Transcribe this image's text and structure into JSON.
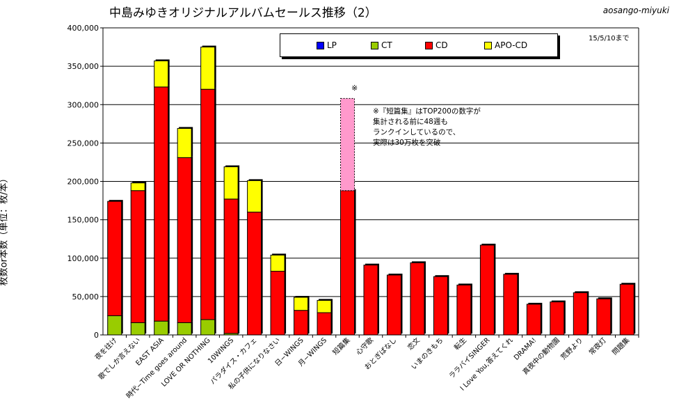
{
  "header": {
    "title": "中島みゆきオリジナルアルバムセールス推移（2）",
    "author": "aosango-miyuki",
    "as_of": "15/5/10まで"
  },
  "annotation": {
    "mark": "※",
    "lines": [
      "※『短篇集』はTOP200の数字が",
      "集計される前に48週も",
      "ランクインしているので、",
      "実際は30万枚を突破"
    ]
  },
  "colors": {
    "LP": "#0000ff",
    "CT": "#99cc00",
    "CD": "#ff0000",
    "APO-CD": "#ffff00",
    "estimate": "#ff99cc"
  },
  "chart_data": {
    "type": "bar",
    "stacked": true,
    "ylabel": "枚数or本数（単位：枚/本）",
    "ylim": [
      0,
      400000
    ],
    "yticks": [
      "0",
      "50,000",
      "100,000",
      "150,000",
      "200,000",
      "250,000",
      "300,000",
      "350,000",
      "400,000"
    ],
    "grid": true,
    "legend_position": "top-center",
    "categories": [
      "夜を往け",
      "歌でしか言えない",
      "EAST ASIA",
      "時代−Time goes around",
      "LOVE OR NOTHING",
      "10WINGS",
      "パラダイス・カフェ",
      "私の子供になりなさい",
      "日−WINGS",
      "月−WINGS",
      "短篇集",
      "心守歌",
      "おとぎばなし",
      "恋文",
      "いまのきもち",
      "転生",
      "ララバイSINGER",
      "I Love You,答えてくれ",
      "DRAMA!",
      "真夜中の動物園",
      "荒野より",
      "常夜灯",
      "問題集"
    ],
    "series": [
      {
        "name": "LP",
        "values": [
          0,
          0,
          0,
          0,
          0,
          0,
          0,
          0,
          0,
          0,
          0,
          0,
          0,
          0,
          0,
          0,
          0,
          0,
          0,
          0,
          0,
          0,
          0
        ]
      },
      {
        "name": "CT",
        "values": [
          25000,
          16000,
          18000,
          16000,
          20000,
          2000,
          0,
          0,
          0,
          0,
          0,
          0,
          0,
          0,
          0,
          0,
          0,
          0,
          0,
          0,
          0,
          0,
          0
        ]
      },
      {
        "name": "CD",
        "values": [
          149000,
          172000,
          305000,
          215000,
          300000,
          175000,
          160000,
          83000,
          32000,
          29000,
          188000,
          91000,
          78000,
          94000,
          76000,
          65000,
          117000,
          79000,
          40000,
          43000,
          55000,
          47000,
          66000
        ]
      },
      {
        "name": "APO-CD",
        "values": [
          0,
          10000,
          34000,
          38000,
          55000,
          42000,
          41000,
          21000,
          17000,
          16000,
          0,
          0,
          0,
          0,
          0,
          0,
          0,
          0,
          0,
          0,
          0,
          0,
          0
        ]
      }
    ],
    "estimate_extra": {
      "category": "短篇集",
      "value": 120000
    }
  }
}
